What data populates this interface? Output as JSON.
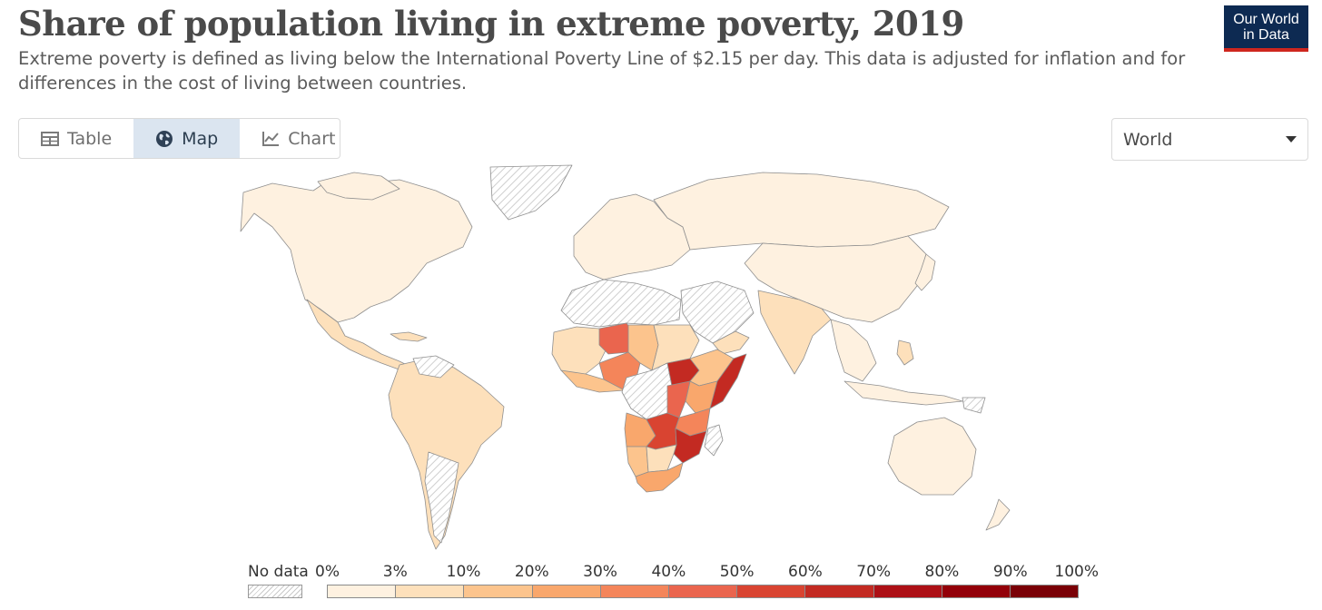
{
  "header": {
    "title": "Share of population living in extreme poverty, 2019",
    "subtitle": "Extreme poverty is defined as living below the International Poverty Line of $2.15 per day. This data is adjusted for inflation and for differences in the cost of living between countries.",
    "logo_line1": "Our World",
    "logo_line2": "in Data"
  },
  "tabs": [
    {
      "label": "Table",
      "icon": "table-icon",
      "active": false
    },
    {
      "label": "Map",
      "icon": "globe-icon",
      "active": true
    },
    {
      "label": "Chart",
      "icon": "line-chart-icon",
      "active": false
    }
  ],
  "region_select": {
    "value": "World"
  },
  "legend": {
    "no_data_label": "No data",
    "ticks": [
      "0%",
      "3%",
      "10%",
      "20%",
      "30%",
      "40%",
      "50%",
      "60%",
      "70%",
      "80%",
      "90%",
      "100%"
    ],
    "colors": [
      "#fef1e0",
      "#fde0bb",
      "#fcc48d",
      "#f9a76c",
      "#f4855a",
      "#ea654e",
      "#d94431",
      "#c32a22",
      "#ad1016",
      "#930009",
      "#7a0006"
    ]
  },
  "colors": {
    "no_data": "#e4e4e4",
    "border": "#8f8f8f"
  }
}
